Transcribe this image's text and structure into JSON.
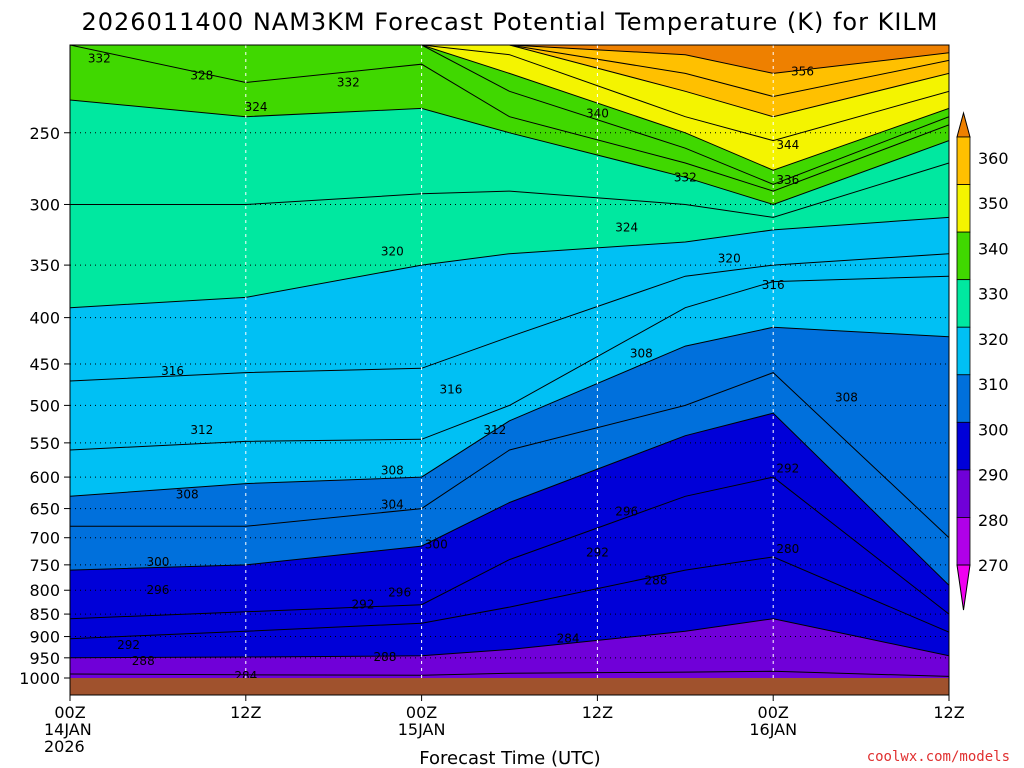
{
  "title": "2026011400 NAM3KM Forecast Potential Temperature (K) for KILM",
  "credit": "coolwx.com/models",
  "chart_data": {
    "type": "heatmap",
    "title": "2026011400 NAM3KM Forecast Potential Temperature (K) for KILM",
    "xlabel": "Forecast Time (UTC)",
    "ylabel": "",
    "x_range_hours": [
      0,
      60
    ],
    "y_scale": "log",
    "y_range_hpa": [
      1000,
      200
    ],
    "x_ticks": [
      {
        "hour": 0,
        "lines": [
          "00Z",
          "14JAN",
          "2026"
        ]
      },
      {
        "hour": 12,
        "lines": [
          "12Z"
        ]
      },
      {
        "hour": 24,
        "lines": [
          "00Z",
          "15JAN"
        ]
      },
      {
        "hour": 36,
        "lines": [
          "12Z"
        ]
      },
      {
        "hour": 48,
        "lines": [
          "00Z",
          "16JAN"
        ]
      },
      {
        "hour": 60,
        "lines": [
          "12Z"
        ]
      }
    ],
    "y_ticks": [
      250,
      300,
      350,
      400,
      450,
      500,
      550,
      600,
      650,
      700,
      750,
      800,
      850,
      900,
      950,
      1000
    ],
    "grid": true,
    "colorbar": {
      "labels": [
        360,
        350,
        340,
        330,
        320,
        310,
        300,
        290,
        280,
        270
      ],
      "colors": [
        "#ee8000",
        "#ffc000",
        "#f4f400",
        "#40d800",
        "#00e8a0",
        "#00c0f4",
        "#0070dc",
        "#0000d8",
        "#7000d8",
        "#b000e8",
        "#f000f0"
      ]
    },
    "isentropes": [
      {
        "theta": 284,
        "pressure_hpa": [
          990,
          992,
          993,
          988,
          985,
          983,
          996
        ]
      },
      {
        "theta": 288,
        "pressure_hpa": [
          950,
          948,
          945,
          930,
          888,
          860,
          945
        ]
      },
      {
        "theta": 292,
        "pressure_hpa": [
          905,
          888,
          870,
          835,
          760,
          735,
          890
        ]
      },
      {
        "theta": 296,
        "pressure_hpa": [
          860,
          845,
          830,
          740,
          630,
          600,
          850
        ]
      },
      {
        "theta": 300,
        "pressure_hpa": [
          760,
          750,
          715,
          640,
          540,
          510,
          790
        ]
      },
      {
        "theta": 304,
        "pressure_hpa": [
          680,
          680,
          650,
          560,
          500,
          460,
          700
        ]
      },
      {
        "theta": 308,
        "pressure_hpa": [
          630,
          610,
          600,
          520,
          430,
          410,
          420
        ]
      },
      {
        "theta": 312,
        "pressure_hpa": [
          560,
          548,
          545,
          500,
          390,
          365,
          360
        ]
      },
      {
        "theta": 316,
        "pressure_hpa": [
          470,
          460,
          455,
          420,
          360,
          350,
          340
        ]
      },
      {
        "theta": 320,
        "pressure_hpa": [
          390,
          380,
          350,
          340,
          330,
          320,
          310
        ]
      },
      {
        "theta": 324,
        "pressure_hpa": [
          300,
          300,
          292,
          290,
          300,
          310,
          270
        ]
      },
      {
        "theta": 328,
        "pressure_hpa": [
          230,
          240,
          235,
          250,
          280,
          300,
          255
        ]
      },
      {
        "theta": 332,
        "pressure_hpa": [
          200,
          220,
          210,
          240,
          270,
          290,
          245
        ]
      },
      {
        "theta": 336,
        "pressure_hpa": [
          200,
          200,
          200,
          225,
          260,
          285,
          240
        ]
      },
      {
        "theta": 340,
        "pressure_hpa": [
          200,
          200,
          200,
          215,
          250,
          275,
          235
        ]
      },
      {
        "theta": 344,
        "pressure_hpa": [
          200,
          200,
          200,
          205,
          240,
          255,
          225
        ]
      },
      {
        "theta": 348,
        "pressure_hpa": [
          200,
          200,
          200,
          200,
          225,
          240,
          215
        ]
      },
      {
        "theta": 352,
        "pressure_hpa": [
          200,
          200,
          200,
          200,
          215,
          228,
          208
        ]
      },
      {
        "theta": 356,
        "pressure_hpa": [
          200,
          200,
          200,
          200,
          205,
          215,
          204
        ]
      }
    ],
    "isentrope_hours": [
      0,
      12,
      24,
      30,
      42,
      48,
      60
    ],
    "contour_labels": [
      {
        "text": "332",
        "hour": 2.0,
        "p": 207
      },
      {
        "text": "328",
        "hour": 9.0,
        "p": 216
      },
      {
        "text": "332",
        "hour": 19.0,
        "p": 220
      },
      {
        "text": "324",
        "hour": 12.7,
        "p": 234
      },
      {
        "text": "340",
        "hour": 36.0,
        "p": 238
      },
      {
        "text": "356",
        "hour": 50.0,
        "p": 214
      },
      {
        "text": "344",
        "hour": 49.0,
        "p": 258
      },
      {
        "text": "336",
        "hour": 49.0,
        "p": 282
      },
      {
        "text": "332",
        "hour": 42.0,
        "p": 280
      },
      {
        "text": "324",
        "hour": 38.0,
        "p": 318
      },
      {
        "text": "320",
        "hour": 22.0,
        "p": 338
      },
      {
        "text": "320",
        "hour": 45.0,
        "p": 344
      },
      {
        "text": "316",
        "hour": 48.0,
        "p": 368
      },
      {
        "text": "308",
        "hour": 39.0,
        "p": 438
      },
      {
        "text": "316",
        "hour": 7.0,
        "p": 458
      },
      {
        "text": "316",
        "hour": 26.0,
        "p": 480
      },
      {
        "text": "308",
        "hour": 53.0,
        "p": 490
      },
      {
        "text": "312",
        "hour": 9.0,
        "p": 532
      },
      {
        "text": "312",
        "hour": 29.0,
        "p": 532
      },
      {
        "text": "292",
        "hour": 49.0,
        "p": 587
      },
      {
        "text": "308",
        "hour": 22.0,
        "p": 590
      },
      {
        "text": "308",
        "hour": 8.0,
        "p": 627
      },
      {
        "text": "304",
        "hour": 22.0,
        "p": 643
      },
      {
        "text": "296",
        "hour": 38.0,
        "p": 655
      },
      {
        "text": "300",
        "hour": 25.0,
        "p": 712
      },
      {
        "text": "280",
        "hour": 49.0,
        "p": 720
      },
      {
        "text": "292",
        "hour": 36.0,
        "p": 727
      },
      {
        "text": "300",
        "hour": 6.0,
        "p": 745
      },
      {
        "text": "288",
        "hour": 40.0,
        "p": 780
      },
      {
        "text": "296",
        "hour": 6.0,
        "p": 800
      },
      {
        "text": "296",
        "hour": 22.5,
        "p": 805
      },
      {
        "text": "292",
        "hour": 20.0,
        "p": 830
      },
      {
        "text": "284",
        "hour": 34.0,
        "p": 905
      },
      {
        "text": "292",
        "hour": 4.0,
        "p": 920
      },
      {
        "text": "288",
        "hour": 5.0,
        "p": 958
      },
      {
        "text": "288",
        "hour": 21.5,
        "p": 948
      },
      {
        "text": "284",
        "hour": 12.0,
        "p": 995
      }
    ]
  }
}
